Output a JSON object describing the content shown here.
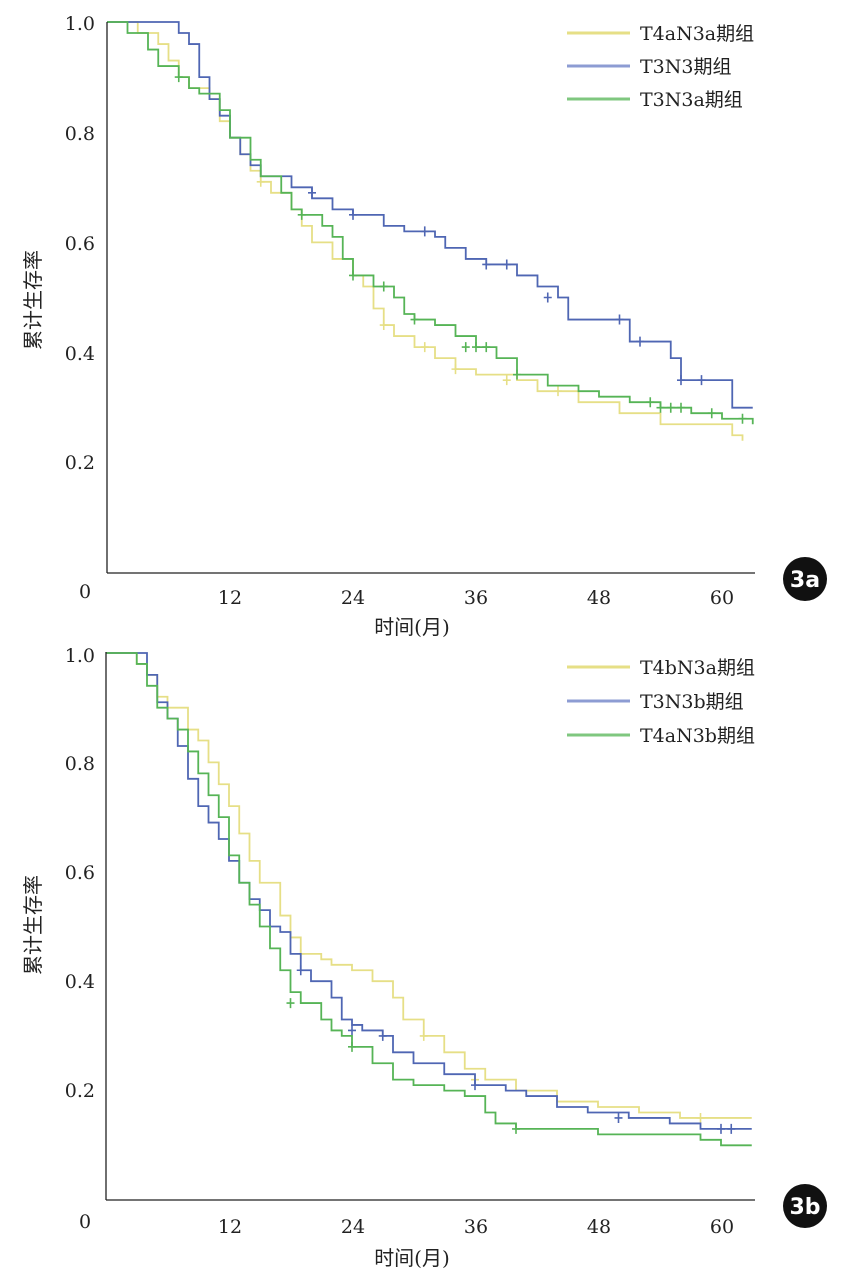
{
  "chart_data": [
    {
      "panel_label": "3a",
      "type": "line",
      "xlabel": "时间(月)",
      "ylabel": "累计生存率",
      "xlim": [
        0,
        63
      ],
      "ylim": [
        0,
        1.0
      ],
      "x_ticks": [
        "0",
        "12",
        "24",
        "36",
        "48",
        "60"
      ],
      "y_ticks": [
        "0.2",
        "0.4",
        "0.6",
        "0.8",
        "1.0"
      ],
      "legend_position": "top-right",
      "series": [
        {
          "name": "T4aN3a期组",
          "color": "#e6df86",
          "points": [
            [
              0,
              1.0
            ],
            [
              1.5,
              1.0
            ],
            [
              3,
              0.98
            ],
            [
              5,
              0.96
            ],
            [
              6,
              0.93
            ],
            [
              7,
              0.9
            ],
            [
              8,
              0.88
            ],
            [
              10,
              0.86
            ],
            [
              11,
              0.82
            ],
            [
              12,
              0.79
            ],
            [
              13,
              0.76
            ],
            [
              14,
              0.73
            ],
            [
              15,
              0.71
            ],
            [
              16,
              0.69
            ],
            [
              18,
              0.66
            ],
            [
              19,
              0.63
            ],
            [
              20,
              0.6
            ],
            [
              22,
              0.57
            ],
            [
              24,
              0.54
            ],
            [
              25,
              0.52
            ],
            [
              26,
              0.48
            ],
            [
              27,
              0.45
            ],
            [
              28,
              0.43
            ],
            [
              30,
              0.41
            ],
            [
              32,
              0.39
            ],
            [
              34,
              0.37
            ],
            [
              36,
              0.36
            ],
            [
              40,
              0.35
            ],
            [
              42,
              0.33
            ],
            [
              46,
              0.31
            ],
            [
              50,
              0.29
            ],
            [
              54,
              0.27
            ],
            [
              58,
              0.27
            ],
            [
              61,
              0.25
            ],
            [
              62,
              0.24
            ]
          ],
          "censors": [
            [
              15,
              0.71
            ],
            [
              27,
              0.45
            ],
            [
              31,
              0.41
            ],
            [
              34,
              0.37
            ],
            [
              39,
              0.35
            ],
            [
              44,
              0.33
            ]
          ]
        },
        {
          "name": "T3N3期组",
          "color": "#4f66b3",
          "points": [
            [
              0,
              1.0
            ],
            [
              6,
              1.0
            ],
            [
              7,
              0.98
            ],
            [
              8,
              0.96
            ],
            [
              9,
              0.9
            ],
            [
              10,
              0.86
            ],
            [
              11,
              0.83
            ],
            [
              12,
              0.79
            ],
            [
              13,
              0.76
            ],
            [
              14,
              0.74
            ],
            [
              15,
              0.72
            ],
            [
              18,
              0.7
            ],
            [
              20,
              0.68
            ],
            [
              22,
              0.66
            ],
            [
              24,
              0.65
            ],
            [
              27,
              0.63
            ],
            [
              29,
              0.62
            ],
            [
              32,
              0.61
            ],
            [
              33,
              0.59
            ],
            [
              35,
              0.57
            ],
            [
              37,
              0.56
            ],
            [
              40,
              0.54
            ],
            [
              42,
              0.52
            ],
            [
              44,
              0.5
            ],
            [
              45,
              0.46
            ],
            [
              51,
              0.42
            ],
            [
              55,
              0.39
            ],
            [
              56,
              0.35
            ],
            [
              61,
              0.3
            ],
            [
              63,
              0.3
            ]
          ],
          "censors": [
            [
              20,
              0.69
            ],
            [
              24,
              0.65
            ],
            [
              31,
              0.62
            ],
            [
              37,
              0.56
            ],
            [
              39,
              0.56
            ],
            [
              43,
              0.5
            ],
            [
              50,
              0.46
            ],
            [
              52,
              0.42
            ],
            [
              56,
              0.35
            ],
            [
              58,
              0.35
            ]
          ]
        },
        {
          "name": "T3N3a期组",
          "color": "#56b456",
          "points": [
            [
              0,
              1.0
            ],
            [
              2,
              0.98
            ],
            [
              4,
              0.95
            ],
            [
              5,
              0.92
            ],
            [
              7,
              0.9
            ],
            [
              8,
              0.88
            ],
            [
              9,
              0.87
            ],
            [
              11,
              0.84
            ],
            [
              12,
              0.79
            ],
            [
              14,
              0.75
            ],
            [
              15,
              0.72
            ],
            [
              17,
              0.69
            ],
            [
              18,
              0.66
            ],
            [
              19,
              0.65
            ],
            [
              21,
              0.63
            ],
            [
              22,
              0.61
            ],
            [
              23,
              0.57
            ],
            [
              24,
              0.54
            ],
            [
              26,
              0.52
            ],
            [
              28,
              0.5
            ],
            [
              29,
              0.47
            ],
            [
              30,
              0.46
            ],
            [
              32,
              0.45
            ],
            [
              34,
              0.43
            ],
            [
              36,
              0.41
            ],
            [
              38,
              0.39
            ],
            [
              40,
              0.36
            ],
            [
              43,
              0.34
            ],
            [
              46,
              0.33
            ],
            [
              48,
              0.32
            ],
            [
              51,
              0.31
            ],
            [
              54,
              0.3
            ],
            [
              57,
              0.29
            ],
            [
              60,
              0.28
            ],
            [
              63,
              0.27
            ]
          ],
          "censors": [
            [
              7,
              0.9
            ],
            [
              19,
              0.65
            ],
            [
              24,
              0.54
            ],
            [
              27,
              0.52
            ],
            [
              30,
              0.46
            ],
            [
              35,
              0.41
            ],
            [
              36,
              0.41
            ],
            [
              37,
              0.41
            ],
            [
              40,
              0.36
            ],
            [
              53,
              0.31
            ],
            [
              54,
              0.3
            ],
            [
              55,
              0.3
            ],
            [
              56,
              0.3
            ],
            [
              59,
              0.29
            ],
            [
              62,
              0.28
            ]
          ]
        }
      ]
    },
    {
      "panel_label": "3b",
      "type": "line",
      "xlabel": "时间(月)",
      "ylabel": "累计生存率",
      "xlim": [
        0,
        63
      ],
      "ylim": [
        0,
        1.0
      ],
      "x_ticks": [
        "0",
        "12",
        "24",
        "36",
        "48",
        "60"
      ],
      "y_ticks": [
        "0.2",
        "0.4",
        "0.6",
        "0.8",
        "1.0"
      ],
      "legend_position": "top-right",
      "series": [
        {
          "name": "T4bN3a期组",
          "color": "#e6df86",
          "points": [
            [
              0,
              1.0
            ],
            [
              2,
              1.0
            ],
            [
              3,
              0.98
            ],
            [
              4,
              0.96
            ],
            [
              5,
              0.92
            ],
            [
              6,
              0.9
            ],
            [
              8,
              0.86
            ],
            [
              9,
              0.84
            ],
            [
              10,
              0.8
            ],
            [
              11,
              0.76
            ],
            [
              12,
              0.72
            ],
            [
              13,
              0.67
            ],
            [
              14,
              0.62
            ],
            [
              15,
              0.58
            ],
            [
              17,
              0.52
            ],
            [
              18,
              0.48
            ],
            [
              19,
              0.45
            ],
            [
              21,
              0.44
            ],
            [
              22,
              0.43
            ],
            [
              24,
              0.42
            ],
            [
              26,
              0.4
            ],
            [
              28,
              0.37
            ],
            [
              29,
              0.33
            ],
            [
              31,
              0.3
            ],
            [
              33,
              0.27
            ],
            [
              35,
              0.24
            ],
            [
              37,
              0.22
            ],
            [
              40,
              0.2
            ],
            [
              44,
              0.18
            ],
            [
              48,
              0.17
            ],
            [
              52,
              0.16
            ],
            [
              56,
              0.15
            ],
            [
              60,
              0.15
            ],
            [
              63,
              0.15
            ]
          ],
          "censors": [
            [
              19,
              0.45
            ],
            [
              31,
              0.3
            ],
            [
              36,
              0.22
            ],
            [
              58,
              0.15
            ]
          ]
        },
        {
          "name": "T3N3b期组",
          "color": "#4f66b3",
          "points": [
            [
              0,
              1.0
            ],
            [
              3,
              1.0
            ],
            [
              4,
              0.96
            ],
            [
              5,
              0.91
            ],
            [
              6,
              0.88
            ],
            [
              7,
              0.83
            ],
            [
              8,
              0.77
            ],
            [
              9,
              0.72
            ],
            [
              10,
              0.69
            ],
            [
              11,
              0.66
            ],
            [
              12,
              0.62
            ],
            [
              13,
              0.58
            ],
            [
              14,
              0.55
            ],
            [
              15,
              0.53
            ],
            [
              16,
              0.5
            ],
            [
              17,
              0.49
            ],
            [
              18,
              0.45
            ],
            [
              19,
              0.42
            ],
            [
              20,
              0.4
            ],
            [
              22,
              0.37
            ],
            [
              23,
              0.33
            ],
            [
              24,
              0.32
            ],
            [
              25,
              0.31
            ],
            [
              27,
              0.3
            ],
            [
              28,
              0.27
            ],
            [
              30,
              0.25
            ],
            [
              33,
              0.23
            ],
            [
              36,
              0.21
            ],
            [
              39,
              0.2
            ],
            [
              41,
              0.19
            ],
            [
              44,
              0.17
            ],
            [
              47,
              0.16
            ],
            [
              51,
              0.15
            ],
            [
              55,
              0.14
            ],
            [
              58,
              0.13
            ],
            [
              63,
              0.13
            ]
          ],
          "censors": [
            [
              19,
              0.42
            ],
            [
              24,
              0.31
            ],
            [
              27,
              0.3
            ],
            [
              36,
              0.21
            ],
            [
              50,
              0.15
            ],
            [
              60,
              0.13
            ],
            [
              61,
              0.13
            ]
          ]
        },
        {
          "name": "T4aN3b期组",
          "color": "#56b456",
          "points": [
            [
              0,
              1.0
            ],
            [
              3,
              0.98
            ],
            [
              4,
              0.94
            ],
            [
              5,
              0.9
            ],
            [
              6,
              0.88
            ],
            [
              7,
              0.86
            ],
            [
              8,
              0.82
            ],
            [
              9,
              0.78
            ],
            [
              10,
              0.74
            ],
            [
              11,
              0.7
            ],
            [
              12,
              0.63
            ],
            [
              13,
              0.58
            ],
            [
              14,
              0.54
            ],
            [
              15,
              0.5
            ],
            [
              16,
              0.46
            ],
            [
              17,
              0.42
            ],
            [
              18,
              0.38
            ],
            [
              19,
              0.36
            ],
            [
              21,
              0.33
            ],
            [
              22,
              0.31
            ],
            [
              23,
              0.3
            ],
            [
              24,
              0.28
            ],
            [
              26,
              0.25
            ],
            [
              28,
              0.22
            ],
            [
              30,
              0.21
            ],
            [
              33,
              0.2
            ],
            [
              35,
              0.19
            ],
            [
              37,
              0.16
            ],
            [
              38,
              0.14
            ],
            [
              40,
              0.13
            ],
            [
              44,
              0.13
            ],
            [
              48,
              0.12
            ],
            [
              55,
              0.12
            ],
            [
              58,
              0.11
            ],
            [
              60,
              0.1
            ],
            [
              63,
              0.1
            ]
          ],
          "censors": [
            [
              18,
              0.36
            ],
            [
              24,
              0.28
            ],
            [
              40,
              0.13
            ]
          ]
        }
      ]
    }
  ]
}
